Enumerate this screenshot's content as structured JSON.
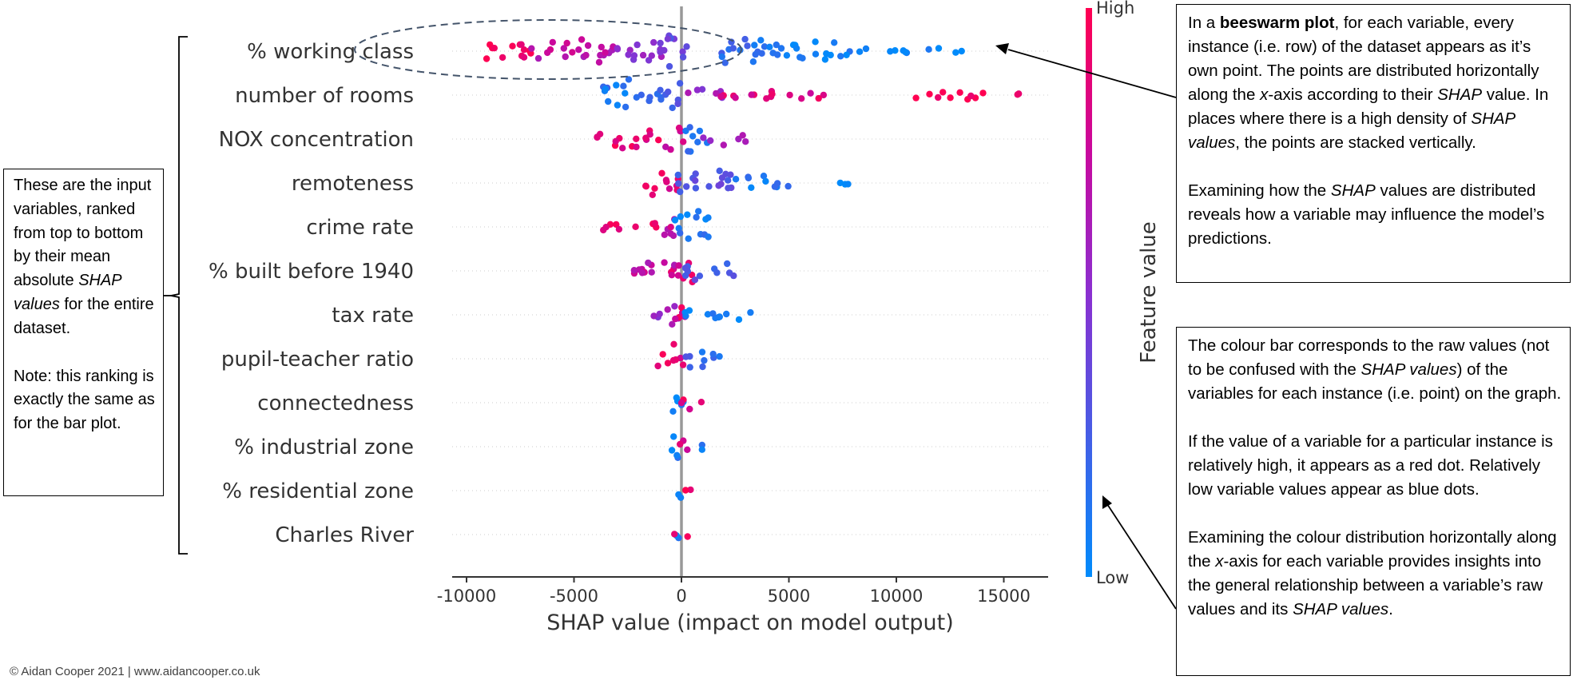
{
  "chart_data": {
    "type": "scatter",
    "subtype": "beeswarm",
    "xlabel": "SHAP value (impact on model output)",
    "xlim": [
      -10500,
      17000
    ],
    "xticks": [
      -10000,
      -5000,
      0,
      5000,
      10000,
      15000
    ],
    "xtick_labels": [
      "-10000",
      "-5000",
      "0",
      "5000",
      "10000",
      "15000"
    ],
    "grid": false,
    "colorbar": {
      "label": "Feature value",
      "high_label": "High",
      "low_label": "Low",
      "high_color": "#ff0051",
      "low_color": "#008bfb"
    },
    "features": [
      {
        "name": "% working class",
        "clusters": [
          {
            "x0": -9500,
            "x1": -7000,
            "fv": 0.95,
            "dens": 0.8
          },
          {
            "x0": -7000,
            "x1": -3000,
            "fv": 0.72,
            "dens": 0.85
          },
          {
            "x0": -3000,
            "x1": -500,
            "fv": 0.5,
            "dens": 0.75
          },
          {
            "x0": -1200,
            "x1": 600,
            "fv": 0.35,
            "dens": 1.0
          },
          {
            "x0": 1000,
            "x1": 4500,
            "fv": 0.15,
            "dens": 0.85
          },
          {
            "x0": 4500,
            "x1": 8000,
            "fv": 0.05,
            "dens": 0.6
          },
          {
            "x0": 8000,
            "x1": 10500,
            "fv": 0.02,
            "dens": 0.2
          },
          {
            "x0": 11500,
            "x1": 13300,
            "fv": 0.0,
            "dens": 0.12
          }
        ]
      },
      {
        "name": "number of rooms",
        "clusters": [
          {
            "x0": -3800,
            "x1": -900,
            "fv": 0.12,
            "dens": 1.0
          },
          {
            "x0": -1000,
            "x1": 200,
            "fv": 0.3,
            "dens": 0.9
          },
          {
            "x0": 200,
            "x1": 2000,
            "fv": 0.55,
            "dens": 0.35
          },
          {
            "x0": 1800,
            "x1": 6800,
            "fv": 0.85,
            "dens": 0.25
          },
          {
            "x0": 10800,
            "x1": 14400,
            "fv": 1.0,
            "dens": 0.25
          },
          {
            "x0": 15600,
            "x1": 15700,
            "fv": 1.0,
            "dens": 0.05
          }
        ]
      },
      {
        "name": "NOX concentration",
        "clusters": [
          {
            "x0": -4000,
            "x1": -1000,
            "fv": 0.9,
            "dens": 0.7
          },
          {
            "x0": -1000,
            "x1": 200,
            "fv": 0.75,
            "dens": 0.8
          },
          {
            "x0": 0,
            "x1": 1200,
            "fv": 0.15,
            "dens": 1.0
          },
          {
            "x0": 1000,
            "x1": 3000,
            "fv": 0.55,
            "dens": 0.3
          }
        ]
      },
      {
        "name": "remoteness",
        "clusters": [
          {
            "x0": -1900,
            "x1": 0,
            "fv": 0.85,
            "dens": 0.85
          },
          {
            "x0": -400,
            "x1": 2500,
            "fv": 0.3,
            "dens": 1.0
          },
          {
            "x0": 2500,
            "x1": 5200,
            "fv": 0.1,
            "dens": 0.4
          },
          {
            "x0": 7100,
            "x1": 8400,
            "fv": 0.02,
            "dens": 0.1
          }
        ]
      },
      {
        "name": "crime rate",
        "clusters": [
          {
            "x0": -3800,
            "x1": -1000,
            "fv": 0.95,
            "dens": 0.35
          },
          {
            "x0": -1200,
            "x1": 0,
            "fv": 0.75,
            "dens": 0.7
          },
          {
            "x0": -300,
            "x1": 1800,
            "fv": 0.1,
            "dens": 1.0
          }
        ]
      },
      {
        "name": "% built before 1940",
        "clusters": [
          {
            "x0": -2300,
            "x1": 0,
            "fv": 0.7,
            "dens": 0.85
          },
          {
            "x0": -500,
            "x1": 800,
            "fv": 0.85,
            "dens": 0.9
          },
          {
            "x0": 0,
            "x1": 2500,
            "fv": 0.3,
            "dens": 0.6
          }
        ]
      },
      {
        "name": "tax rate",
        "clusters": [
          {
            "x0": -1500,
            "x1": 0,
            "fv": 0.55,
            "dens": 0.7
          },
          {
            "x0": -600,
            "x1": 200,
            "fv": 0.85,
            "dens": 0.9
          },
          {
            "x0": 0,
            "x1": 3300,
            "fv": 0.05,
            "dens": 0.35
          }
        ]
      },
      {
        "name": "pupil-teacher ratio",
        "clusters": [
          {
            "x0": -1200,
            "x1": 200,
            "fv": 0.9,
            "dens": 0.9
          },
          {
            "x0": 0,
            "x1": 1900,
            "fv": 0.2,
            "dens": 0.7
          }
        ]
      },
      {
        "name": "connectedness",
        "clusters": [
          {
            "x0": -1100,
            "x1": 200,
            "fv": 0.05,
            "dens": 0.6
          },
          {
            "x0": 0,
            "x1": 1000,
            "fv": 0.9,
            "dens": 0.5
          }
        ]
      },
      {
        "name": "% industrial zone",
        "clusters": [
          {
            "x0": -700,
            "x1": 200,
            "fv": 0.1,
            "dens": 0.7
          },
          {
            "x0": -200,
            "x1": 400,
            "fv": 0.85,
            "dens": 0.6
          },
          {
            "x0": 300,
            "x1": 1000,
            "fv": 0.05,
            "dens": 0.3
          }
        ]
      },
      {
        "name": "% residential zone",
        "clusters": [
          {
            "x0": -250,
            "x1": 150,
            "fv": 0.05,
            "dens": 0.5
          },
          {
            "x0": 150,
            "x1": 500,
            "fv": 0.95,
            "dens": 0.15
          }
        ]
      },
      {
        "name": "Charles River",
        "clusters": [
          {
            "x0": -250,
            "x1": 150,
            "fv": 0.05,
            "dens": 0.45
          },
          {
            "x0": -400,
            "x1": 450,
            "fv": 0.95,
            "dens": 0.1
          }
        ]
      }
    ]
  },
  "annotations": {
    "left_box": {
      "p1": "These are the input variables, ranked from top to bottom by their mean absolute",
      "p1_em": "SHAP values",
      "p1_end": "for the entire dataset.",
      "p2": "Note: this ranking is exactly the same as for the bar plot."
    },
    "beeswarm_box": {
      "a1": "In a",
      "a_bold": "beeswarm plot",
      "a2": ", for each variable, every instance (i.e. row) of the dataset appears as it’s own point. The points are distributed horizontally along the",
      "a_x": "x",
      "a3": "-axis according to their",
      "a_shap1": "SHAP",
      "a4": "value. In places where there is a high density of",
      "a_shap2": "SHAP values",
      "a5": ", the points are stacked vertically.",
      "b1": "Examining how the",
      "b_shap": "SHAP",
      "b2": "values are distributed reveals how a variable may influence the model’s predictions."
    },
    "colourbar_box": {
      "a1": "The colour bar corresponds to the raw values (not to be confused with the",
      "a_shap": "SHAP values",
      "a2": ") of the variables for each instance (i.e. point) on the graph.",
      "b1": "If the value of a variable for a particular instance is relatively high, it appears as a red dot. Relatively low variable values appear as blue dots.",
      "c1": "Examining the colour distribution horizontally along the",
      "c_x": "x",
      "c2": "-axis for each variable provides insights into the general relationship between a variable’s raw values and its",
      "c_shap": "SHAP values",
      "c3": "."
    }
  },
  "footer": {
    "copyright": "© Aidan Cooper 2021 | www.aidancooper.co.uk"
  }
}
